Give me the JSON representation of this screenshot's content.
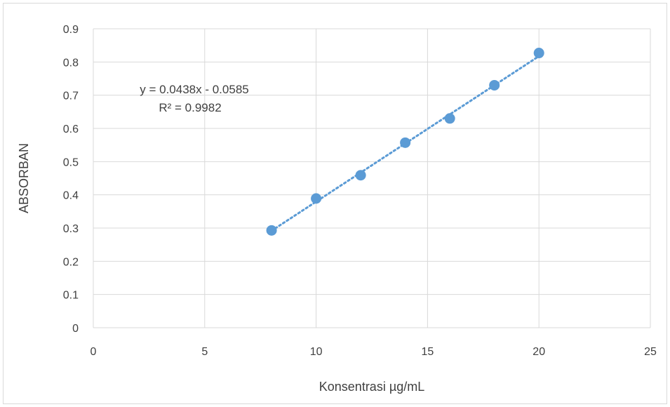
{
  "chart_data": {
    "type": "scatter",
    "title": "",
    "xlabel": "Konsentrasi µg/mL",
    "ylabel": "ABSORBAN",
    "xlim": [
      0,
      25
    ],
    "ylim": [
      0,
      0.9
    ],
    "x_ticks": [
      "0",
      "5",
      "10",
      "15",
      "20",
      "25"
    ],
    "y_ticks": [
      "0",
      "0.1",
      "0.2",
      "0.3",
      "0.4",
      "0.5",
      "0.6",
      "0.7",
      "0.8",
      "0.9"
    ],
    "grid": true,
    "legend": "none",
    "series": [
      {
        "x": [
          8,
          10,
          12,
          14,
          16,
          18,
          20
        ],
        "y": [
          0.293,
          0.389,
          0.459,
          0.557,
          0.63,
          0.73,
          0.827
        ],
        "color": "#5b9bd5"
      }
    ],
    "trendline": {
      "type": "linear",
      "slope": 0.0438,
      "intercept": -0.0585,
      "x_range": [
        8,
        20
      ],
      "style": "dotted",
      "color": "#5b9bd5"
    },
    "annotations": {
      "equation": "y = 0.0438x - 0.0585",
      "r_squared": "R² = 0.9982"
    }
  }
}
